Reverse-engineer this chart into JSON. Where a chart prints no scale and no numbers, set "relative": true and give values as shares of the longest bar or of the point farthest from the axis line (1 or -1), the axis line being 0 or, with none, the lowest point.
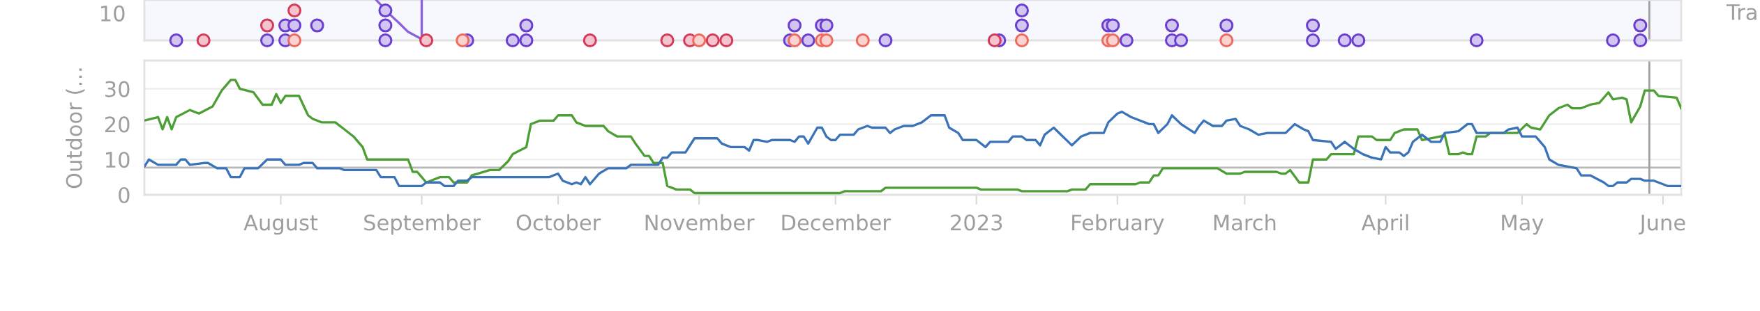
{
  "chart_data": [
    {
      "type": "scatter",
      "relative": true,
      "xlim": [
        "2022-07-02",
        "2023-06-05"
      ],
      "ref_lines": [
        {
          "axis": "x",
          "value": "2023-05-29",
          "color": "#a0a0a0"
        }
      ],
      "annotations": [
        "10",
        "Tra"
      ],
      "series": [
        {
          "type": "line",
          "color": "#8a5fe0",
          "x": [
            "2022-08-22",
            "2022-08-25",
            "2022-08-27",
            "2022-08-29",
            "2022-09-01",
            "2022-09-01"
          ],
          "values": [
            1,
            0.64,
            0.43,
            0.21,
            0.03,
            1
          ]
        },
        {
          "color": "#6a3fd0",
          "marker": "circle",
          "x": [
            "2022-07-09",
            "2022-07-29",
            "2022-08-02",
            "2022-08-02",
            "2022-08-04",
            "2022-08-09",
            "2022-08-24",
            "2022-08-24",
            "2022-08-24",
            "2022-09-11",
            "2022-09-21",
            "2022-09-24",
            "2022-09-24",
            "2022-11-21",
            "2022-11-22",
            "2022-11-25",
            "2022-11-28",
            "2022-11-29",
            "2022-12-12",
            "2023-01-06",
            "2023-01-11",
            "2023-01-11",
            "2023-01-30",
            "2023-01-31",
            "2023-02-03",
            "2023-02-13",
            "2023-02-13",
            "2023-02-15",
            "2023-02-25",
            "2023-03-16",
            "2023-03-16",
            "2023-03-23",
            "2023-03-26",
            "2023-04-21",
            "2023-05-21",
            "2023-05-27",
            "2023-05-27"
          ],
          "values": [
            0,
            0,
            0,
            0.37,
            0.37,
            0.37,
            0,
            0.37,
            0.74,
            0,
            0,
            0,
            0.37,
            0,
            0.37,
            0,
            0.37,
            0.37,
            0,
            0,
            0.37,
            0.74,
            0.37,
            0.37,
            0,
            0,
            0.37,
            0,
            0.37,
            0,
            0.37,
            0,
            0,
            0,
            0,
            0,
            0.37
          ]
        },
        {
          "color": "#d63a5a",
          "marker": "circle",
          "x": [
            "2022-07-15",
            "2022-07-29",
            "2022-08-04",
            "2022-09-02",
            "2022-10-08",
            "2022-10-25",
            "2022-10-30",
            "2022-11-04",
            "2022-11-07",
            "2023-01-05"
          ],
          "values": [
            0,
            0.37,
            0.74,
            0,
            0,
            0,
            0,
            0,
            0,
            0
          ]
        },
        {
          "color": "#ee6a5f",
          "marker": "circle",
          "x": [
            "2022-08-04",
            "2022-09-10",
            "2022-11-01",
            "2022-11-22",
            "2022-11-28",
            "2022-11-29",
            "2022-12-07",
            "2023-01-11",
            "2023-01-30",
            "2023-01-31",
            "2023-02-25"
          ],
          "values": [
            0,
            0,
            0,
            0,
            0,
            0,
            0,
            0,
            0,
            0,
            0
          ]
        }
      ]
    },
    {
      "type": "line",
      "ylabel": "Outdoor (…",
      "grid": "y",
      "line_style": "solid",
      "xlim": [
        "2022-07-02",
        "2023-06-05"
      ],
      "xticks": [
        {
          "value": "2022-08-01",
          "label": "August"
        },
        {
          "value": "2022-09-01",
          "label": "September"
        },
        {
          "value": "2022-10-01",
          "label": "October"
        },
        {
          "value": "2022-11-01",
          "label": "November"
        },
        {
          "value": "2022-12-01",
          "label": "December"
        },
        {
          "value": "2023-01-01",
          "label": "2023"
        },
        {
          "value": "2023-02-01",
          "label": "February"
        },
        {
          "value": "2023-03-01",
          "label": "March"
        },
        {
          "value": "2023-04-01",
          "label": "April"
        },
        {
          "value": "2023-05-01",
          "label": "May"
        },
        {
          "value": "2023-06-01",
          "label": "June"
        }
      ],
      "ylim": [
        0,
        38
      ],
      "yticks": [
        0,
        10,
        20,
        30
      ],
      "ref_lines": [
        {
          "axis": "y",
          "value": 7.7,
          "color": "#b8b8b8"
        },
        {
          "axis": "x",
          "value": "2023-05-29",
          "color": "#a0a0a0"
        }
      ],
      "series": [
        {
          "color": "#4c9e35",
          "x": [
            "2022-07-02",
            "2022-07-05",
            "2022-07-06",
            "2022-07-07",
            "2022-07-08",
            "2022-07-09",
            "2022-07-12",
            "2022-07-14",
            "2022-07-17",
            "2022-07-19",
            "2022-07-21",
            "2022-07-22",
            "2022-07-23",
            "2022-07-26",
            "2022-07-28",
            "2022-07-30",
            "2022-07-31",
            "2022-08-01",
            "2022-08-02",
            "2022-08-05",
            "2022-08-07",
            "2022-08-08",
            "2022-08-10",
            "2022-08-13",
            "2022-08-15",
            "2022-08-17",
            "2022-08-19",
            "2022-08-20",
            "2022-08-29",
            "2022-08-30",
            "2022-08-31",
            "2022-09-02",
            "2022-09-05",
            "2022-09-07",
            "2022-09-08",
            "2022-09-11",
            "2022-09-12",
            "2022-09-16",
            "2022-09-18",
            "2022-09-20",
            "2022-09-21",
            "2022-09-24",
            "2022-09-25",
            "2022-09-27",
            "2022-09-30",
            "2022-10-01",
            "2022-10-04",
            "2022-10-05",
            "2022-10-07",
            "2022-10-11",
            "2022-10-12",
            "2022-10-14",
            "2022-10-17",
            "2022-10-18",
            "2022-10-20",
            "2022-10-21",
            "2022-10-22",
            "2022-10-24",
            "2022-10-25",
            "2022-10-27",
            "2022-10-30",
            "2022-10-31",
            "2022-12-02",
            "2022-12-03",
            "2022-12-11",
            "2022-12-12",
            "2023-01-01",
            "2023-01-02",
            "2023-01-10",
            "2023-01-11",
            "2023-01-21",
            "2023-01-22",
            "2023-01-25",
            "2023-01-26",
            "2023-02-05",
            "2023-02-06",
            "2023-02-08",
            "2023-02-09",
            "2023-02-10",
            "2023-02-11",
            "2023-02-23",
            "2023-02-25",
            "2023-02-28",
            "2023-03-01",
            "2023-03-08",
            "2023-03-09",
            "2023-03-10",
            "2023-03-11",
            "2023-03-13",
            "2023-03-15",
            "2023-03-16",
            "2023-03-19",
            "2023-03-20",
            "2023-03-25",
            "2023-03-26",
            "2023-03-29",
            "2023-03-30",
            "2023-04-02",
            "2023-04-03",
            "2023-04-05",
            "2023-04-08",
            "2023-04-09",
            "2023-04-13",
            "2023-04-14",
            "2023-04-15",
            "2023-04-17",
            "2023-04-18",
            "2023-04-19",
            "2023-04-20",
            "2023-04-21",
            "2023-04-23",
            "2023-04-24",
            "2023-04-30",
            "2023-05-02",
            "2023-05-03",
            "2023-05-05",
            "2023-05-07",
            "2023-05-09",
            "2023-05-11",
            "2023-05-12",
            "2023-05-14",
            "2023-05-16",
            "2023-05-18",
            "2023-05-20",
            "2023-05-21",
            "2023-05-23",
            "2023-05-24",
            "2023-05-25",
            "2023-05-27",
            "2023-05-28",
            "2023-05-30",
            "2023-05-31",
            "2023-06-04",
            "2023-06-05"
          ],
          "values": [
            21,
            22,
            18.5,
            22,
            18.5,
            22,
            24,
            23,
            25,
            29.5,
            32.5,
            32.5,
            30,
            29,
            25.5,
            25.5,
            28.5,
            26,
            28,
            28,
            22.5,
            21.5,
            20.5,
            20.5,
            18.5,
            16.5,
            13.5,
            10,
            10,
            6.5,
            6.5,
            3.5,
            5,
            5,
            3.5,
            3.5,
            5.5,
            7,
            7,
            9.5,
            11.5,
            13.5,
            20,
            21,
            21,
            22.5,
            22.5,
            20.5,
            19.5,
            19.5,
            18,
            16.5,
            16.5,
            14.5,
            11,
            11,
            9,
            9,
            2.5,
            1.5,
            1.5,
            0.5,
            0.5,
            1,
            1,
            2,
            2,
            1.5,
            1.5,
            1,
            1,
            1.5,
            1.5,
            3,
            3,
            3.5,
            3.5,
            5.5,
            5.5,
            7.5,
            7.5,
            6,
            6,
            6.5,
            6.5,
            6,
            6,
            7,
            3.5,
            3.5,
            10,
            10,
            11.5,
            11.5,
            16.5,
            16.5,
            15.5,
            15.5,
            17.5,
            18.5,
            18.5,
            15.5,
            16.5,
            17,
            11.5,
            11.5,
            12,
            11.5,
            11.5,
            16.5,
            16.5,
            17.5,
            17.5,
            20,
            19,
            18.5,
            22.5,
            24.5,
            25.5,
            24.5,
            24.5,
            25.5,
            26,
            29,
            27,
            27.5,
            27,
            20.5,
            25,
            29.5,
            29.5,
            28,
            27.5,
            24.5
          ]
        },
        {
          "color": "#3b73b9",
          "x": [
            "2022-07-02",
            "2022-07-03",
            "2022-07-05",
            "2022-07-09",
            "2022-07-10",
            "2022-07-11",
            "2022-07-12",
            "2022-07-15",
            "2022-07-16",
            "2022-07-18",
            "2022-07-20",
            "2022-07-21",
            "2022-07-23",
            "2022-07-24",
            "2022-07-27",
            "2022-07-29",
            "2022-08-01",
            "2022-08-02",
            "2022-08-05",
            "2022-08-06",
            "2022-08-08",
            "2022-08-09",
            "2022-08-14",
            "2022-08-15",
            "2022-08-22",
            "2022-08-23",
            "2022-08-26",
            "2022-08-27",
            "2022-09-01",
            "2022-09-02",
            "2022-09-05",
            "2022-09-06",
            "2022-09-08",
            "2022-09-09",
            "2022-09-11",
            "2022-09-12",
            "2022-09-29",
            "2022-10-01",
            "2022-10-02",
            "2022-10-04",
            "2022-10-05",
            "2022-10-06",
            "2022-10-07",
            "2022-10-08",
            "2022-10-10",
            "2022-10-12",
            "2022-10-16",
            "2022-10-17",
            "2022-10-23",
            "2022-10-24",
            "2022-10-25",
            "2022-10-26",
            "2022-10-29",
            "2022-10-31",
            "2022-11-05",
            "2022-11-06",
            "2022-11-08",
            "2022-11-11",
            "2022-11-12",
            "2022-11-13",
            "2022-11-14",
            "2022-11-16",
            "2022-11-17",
            "2022-11-21",
            "2022-11-22",
            "2022-11-23",
            "2022-11-24",
            "2022-11-25",
            "2022-11-27",
            "2022-11-28",
            "2022-11-29",
            "2022-11-30",
            "2022-12-01",
            "2022-12-02",
            "2022-12-05",
            "2022-12-06",
            "2022-12-08",
            "2022-12-09",
            "2022-12-12",
            "2022-12-13",
            "2022-12-14",
            "2022-12-16",
            "2022-12-18",
            "2022-12-20",
            "2022-12-22",
            "2022-12-25",
            "2022-12-26",
            "2022-12-28",
            "2022-12-29",
            "2023-01-01",
            "2023-01-03",
            "2023-01-04",
            "2023-01-08",
            "2023-01-09",
            "2023-01-11",
            "2023-01-12",
            "2023-01-14",
            "2023-01-15",
            "2023-01-16",
            "2023-01-18",
            "2023-01-20",
            "2023-01-22",
            "2023-01-24",
            "2023-01-26",
            "2023-01-29",
            "2023-01-30",
            "2023-02-01",
            "2023-02-02",
            "2023-02-04",
            "2023-02-05",
            "2023-02-08",
            "2023-02-09",
            "2023-02-10",
            "2023-02-12",
            "2023-02-13",
            "2023-02-15",
            "2023-02-18",
            "2023-02-19",
            "2023-02-20",
            "2023-02-22",
            "2023-02-24",
            "2023-02-25",
            "2023-02-27",
            "2023-02-28",
            "2023-03-02",
            "2023-03-04",
            "2023-03-06",
            "2023-03-10",
            "2023-03-12",
            "2023-03-14",
            "2023-03-15",
            "2023-03-16",
            "2023-03-20",
            "2023-03-21",
            "2023-03-23",
            "2023-03-25",
            "2023-03-27",
            "2023-03-29",
            "2023-03-31",
            "2023-04-01",
            "2023-04-02",
            "2023-04-04",
            "2023-04-05",
            "2023-04-06",
            "2023-04-07",
            "2023-04-09",
            "2023-04-11",
            "2023-04-13",
            "2023-04-14",
            "2023-04-17",
            "2023-04-19",
            "2023-04-20",
            "2023-04-21",
            "2023-04-22",
            "2023-04-27",
            "2023-04-28",
            "2023-04-30",
            "2023-05-01",
            "2023-05-04",
            "2023-05-06",
            "2023-05-07",
            "2023-05-09",
            "2023-05-13",
            "2023-05-14",
            "2023-05-16",
            "2023-05-19",
            "2023-05-20",
            "2023-05-21",
            "2023-05-22",
            "2023-05-24",
            "2023-05-25",
            "2023-05-27",
            "2023-05-28",
            "2023-05-30",
            "2023-05-31",
            "2023-06-02",
            "2023-06-05"
          ],
          "values": [
            8,
            10,
            8.5,
            8.5,
            10,
            10,
            8.5,
            9,
            9,
            7.5,
            7.5,
            5,
            5,
            7.5,
            7.5,
            10,
            10,
            8.5,
            8.5,
            9,
            9,
            7.5,
            7.5,
            7,
            7,
            5,
            5,
            2.5,
            2.5,
            3.5,
            3.5,
            2.5,
            2.5,
            4,
            4,
            5,
            5,
            6,
            4,
            3,
            3.5,
            3,
            5,
            3,
            6,
            7.5,
            7.5,
            8.5,
            8.5,
            10.5,
            10.5,
            12,
            12,
            16,
            16,
            14.5,
            13.5,
            13.5,
            12.5,
            15.5,
            15.5,
            15,
            15.5,
            15.5,
            15,
            16.5,
            16.5,
            14.5,
            19,
            19,
            16.5,
            15.5,
            15.5,
            17,
            17,
            18.5,
            19.5,
            19,
            19,
            17.5,
            18.5,
            19.5,
            19.5,
            20.5,
            22.5,
            22.5,
            19,
            17.5,
            15.5,
            15.5,
            13.5,
            15,
            15,
            16.5,
            16.5,
            15.5,
            15.5,
            14,
            17,
            19,
            16.5,
            14,
            16.5,
            17.5,
            17.5,
            20.5,
            23,
            23.5,
            22,
            21.5,
            20,
            20,
            17.5,
            20,
            22.5,
            20,
            17.5,
            19.5,
            21,
            19.5,
            19.5,
            21,
            21.5,
            19.5,
            18.5,
            17,
            17.5,
            17.5,
            20,
            18.5,
            18,
            15.5,
            15,
            13,
            15,
            13,
            11.5,
            10.5,
            10,
            13.5,
            12,
            12,
            11,
            12,
            15,
            17,
            15,
            15,
            17.5,
            18,
            20,
            20,
            17.5,
            17.5,
            17.5,
            18.5,
            19,
            16.5,
            16.5,
            13.5,
            10,
            8.5,
            7.5,
            5.5,
            5.5,
            3.5,
            2.5,
            2.5,
            3.5,
            3.5,
            4.5,
            4.5,
            4,
            4,
            3.5,
            2.5,
            2.5
          ]
        }
      ]
    }
  ]
}
